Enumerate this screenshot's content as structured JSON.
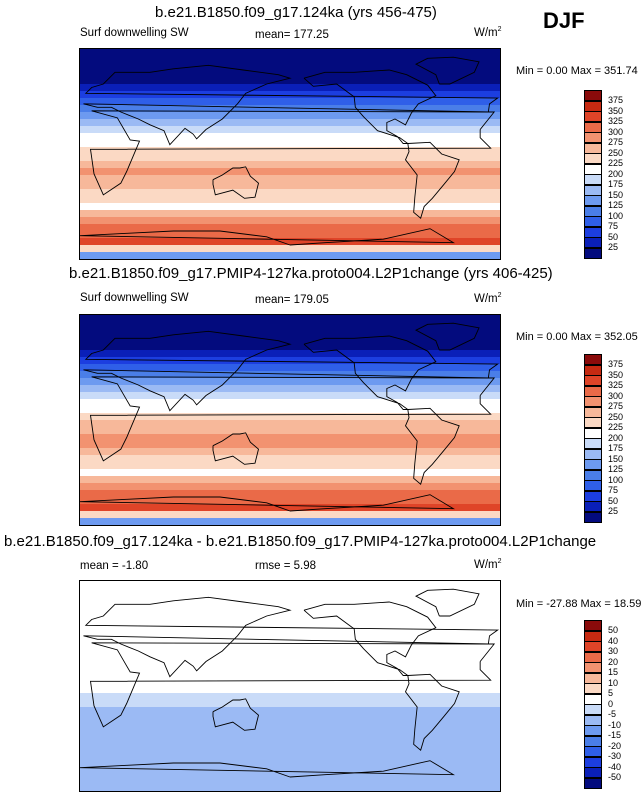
{
  "season": "DJF",
  "panels": [
    {
      "title": "b.e21.B1850.f09_g17.124ka (yrs 456-475)",
      "left_label": "Surf downwelling SW",
      "center_label": "mean= 177.25",
      "units": "W/m",
      "units_sup": "2",
      "minmax": "Min =   0.00 Max = 351.74"
    },
    {
      "title": "b.e21.B1850.f09_g17.PMIP4-127ka.proto004.L2P1change (yrs 406-425)",
      "left_label": "Surf downwelling SW",
      "center_label": "mean= 179.05",
      "units": "W/m",
      "units_sup": "2",
      "minmax": "Min =   0.00 Max = 352.05"
    },
    {
      "title": "b.e21.B1850.f09_g17.124ka - b.e21.B1850.f09_g17.PMIP4-127ka.proto004.L2P1change",
      "left_label": "mean =  -1.80",
      "center_label": "rmse =   5.98",
      "units": "W/m",
      "units_sup": "2",
      "minmax": "Min = -27.88 Max =  18.59"
    }
  ],
  "chart_data": [
    {
      "type": "heatmap",
      "title": "b.e21.B1850.f09_g17.124ka (yrs 456-475)",
      "variable": "Surf downwelling SW",
      "mean": 177.25,
      "min": 0.0,
      "max": 351.74,
      "colorbar_levels": [
        25,
        50,
        75,
        100,
        125,
        150,
        175,
        200,
        225,
        250,
        275,
        300,
        325,
        350,
        375
      ],
      "colorbar_colors": [
        "#030b7e",
        "#0a1fb8",
        "#1c3ee0",
        "#2f5fe8",
        "#4a7ee8",
        "#6d9af0",
        "#9bbaf4",
        "#c9dbf8",
        "#ffffff",
        "#fbd9c4",
        "#f7b89a",
        "#f29270",
        "#ea6a48",
        "#df4428",
        "#c62a12",
        "#8a0b0b"
      ],
      "lat_profile": [
        [
          -90,
          80
        ],
        [
          -75,
          330
        ],
        [
          -60,
          300
        ],
        [
          -45,
          220
        ],
        [
          -30,
          250
        ],
        [
          -15,
          285
        ],
        [
          0,
          240
        ],
        [
          15,
          210
        ],
        [
          30,
          160
        ],
        [
          45,
          80
        ],
        [
          60,
          25
        ],
        [
          75,
          5
        ],
        [
          90,
          0
        ]
      ]
    },
    {
      "type": "heatmap",
      "title": "b.e21.B1850.f09_g17.PMIP4-127ka.proto004.L2P1change (yrs 406-425)",
      "variable": "Surf downwelling SW",
      "mean": 179.05,
      "min": 0.0,
      "max": 352.05,
      "colorbar_levels": [
        25,
        50,
        75,
        100,
        125,
        150,
        175,
        200,
        225,
        250,
        275,
        300,
        325,
        350,
        375
      ],
      "colorbar_colors": [
        "#030b7e",
        "#0a1fb8",
        "#1c3ee0",
        "#2f5fe8",
        "#4a7ee8",
        "#6d9af0",
        "#9bbaf4",
        "#c9dbf8",
        "#ffffff",
        "#fbd9c4",
        "#f7b89a",
        "#f29270",
        "#ea6a48",
        "#df4428",
        "#c62a12",
        "#8a0b0b"
      ],
      "lat_profile": [
        [
          -90,
          85
        ],
        [
          -75,
          335
        ],
        [
          -60,
          300
        ],
        [
          -45,
          220
        ],
        [
          -30,
          255
        ],
        [
          -15,
          290
        ],
        [
          0,
          240
        ],
        [
          15,
          205
        ],
        [
          30,
          155
        ],
        [
          45,
          75
        ],
        [
          60,
          22
        ],
        [
          75,
          4
        ],
        [
          90,
          0
        ]
      ]
    },
    {
      "type": "heatmap",
      "title": "b.e21.B1850.f09_g17.124ka - b.e21.B1850.f09_g17.PMIP4-127ka.proto004.L2P1change",
      "mean": -1.8,
      "rmse": 5.98,
      "min": -27.88,
      "max": 18.59,
      "colorbar_levels": [
        -50,
        -40,
        -30,
        -20,
        -15,
        -10,
        -5,
        0,
        5,
        10,
        15,
        20,
        30,
        40,
        50
      ],
      "colorbar_colors": [
        "#030b7e",
        "#0a1fb8",
        "#1c3ee0",
        "#2f5fe8",
        "#4a7ee8",
        "#6d9af0",
        "#9bbaf4",
        "#c9dbf8",
        "#ffffff",
        "#fbd9c4",
        "#f7b89a",
        "#f29270",
        "#ea6a48",
        "#df4428",
        "#c62a12",
        "#8a0b0b"
      ],
      "lat_profile": [
        [
          -90,
          -6
        ],
        [
          -75,
          -8
        ],
        [
          -60,
          -6
        ],
        [
          -45,
          -7
        ],
        [
          -30,
          -10
        ],
        [
          -15,
          -4
        ],
        [
          0,
          5
        ],
        [
          15,
          2
        ],
        [
          30,
          1
        ],
        [
          45,
          1
        ],
        [
          60,
          0
        ],
        [
          75,
          0
        ],
        [
          90,
          0
        ]
      ]
    }
  ]
}
